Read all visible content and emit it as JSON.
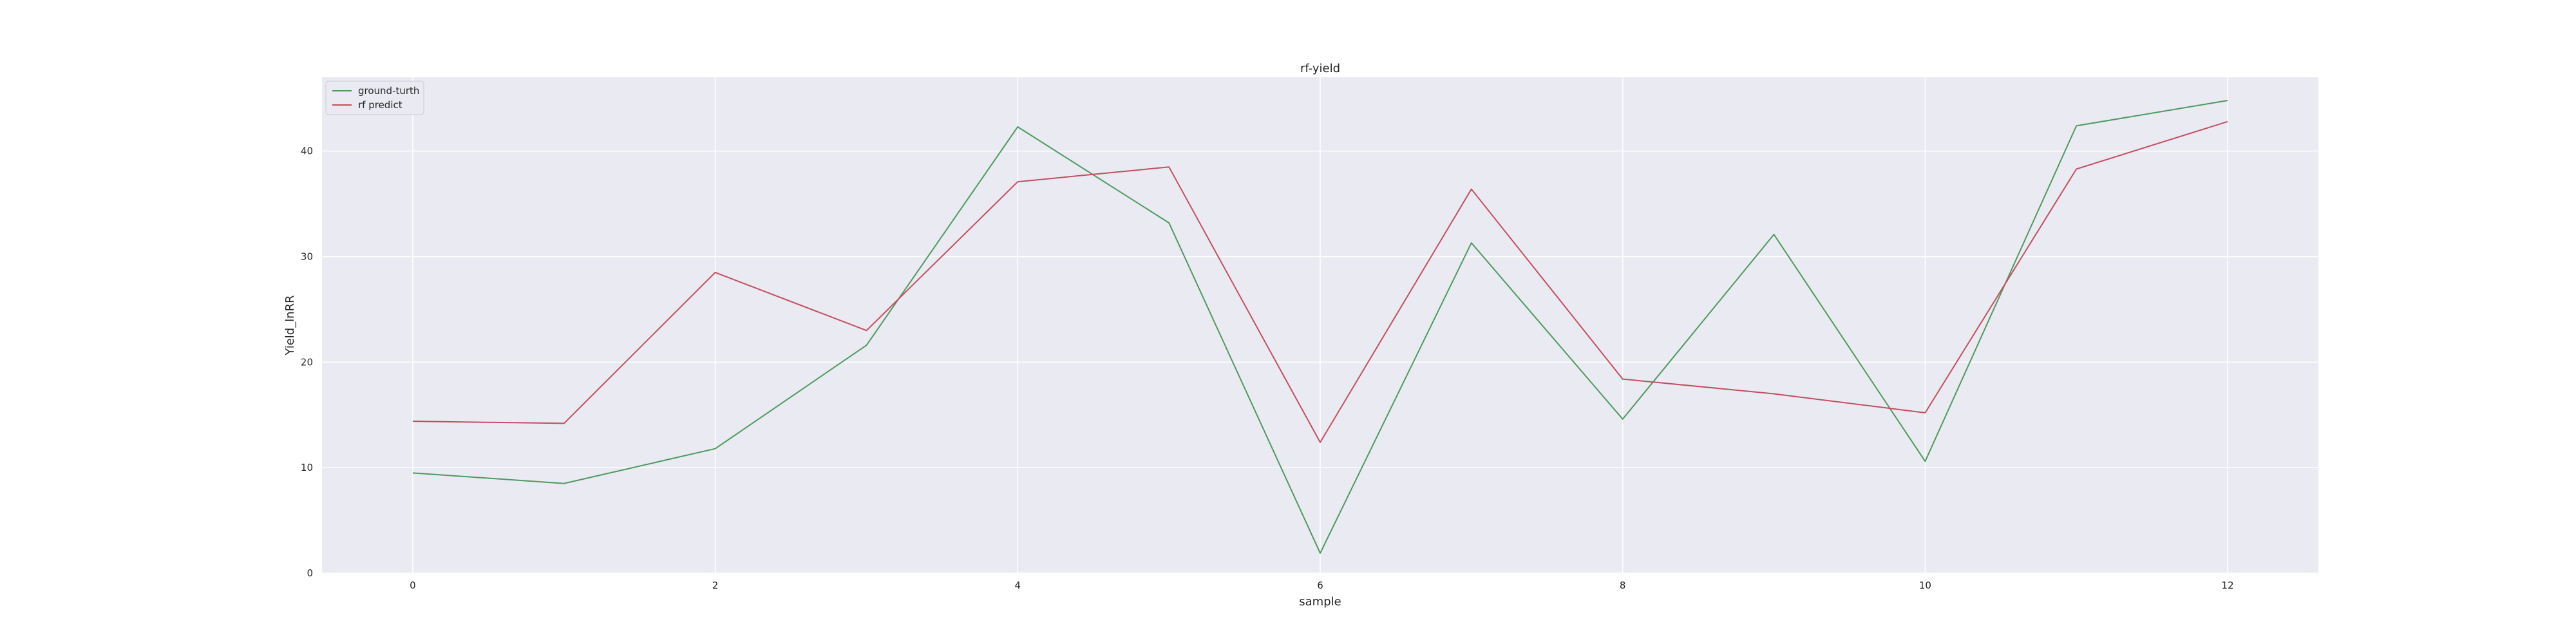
{
  "chart_data": {
    "type": "line",
    "title": "rf-yield",
    "xlabel": "sample",
    "ylabel": "Yield_lnRR",
    "x": [
      0,
      1,
      2,
      3,
      4,
      5,
      6,
      7,
      8,
      9,
      10,
      11,
      12
    ],
    "series": [
      {
        "name": "ground-turth",
        "color": "#4c9a5e",
        "values": [
          9.5,
          8.5,
          11.8,
          21.6,
          42.3,
          33.2,
          1.9,
          31.3,
          14.6,
          32.1,
          10.6,
          42.4,
          44.8
        ]
      },
      {
        "name": "rf predict",
        "color": "#c44e5e",
        "values": [
          14.4,
          14.2,
          28.5,
          23.0,
          37.1,
          38.5,
          12.4,
          36.4,
          18.4,
          17.0,
          15.2,
          38.3,
          42.8
        ]
      }
    ],
    "xlim": [
      -0.6,
      12.6
    ],
    "ylim": [
      0,
      47
    ],
    "xticks": [
      0,
      2,
      4,
      6,
      8,
      10,
      12
    ],
    "yticks": [
      0,
      10,
      20,
      30,
      40
    ],
    "grid": true,
    "legend_position": "top-left",
    "background_color": "#eaeaf2",
    "grid_color": "#ffffff"
  }
}
